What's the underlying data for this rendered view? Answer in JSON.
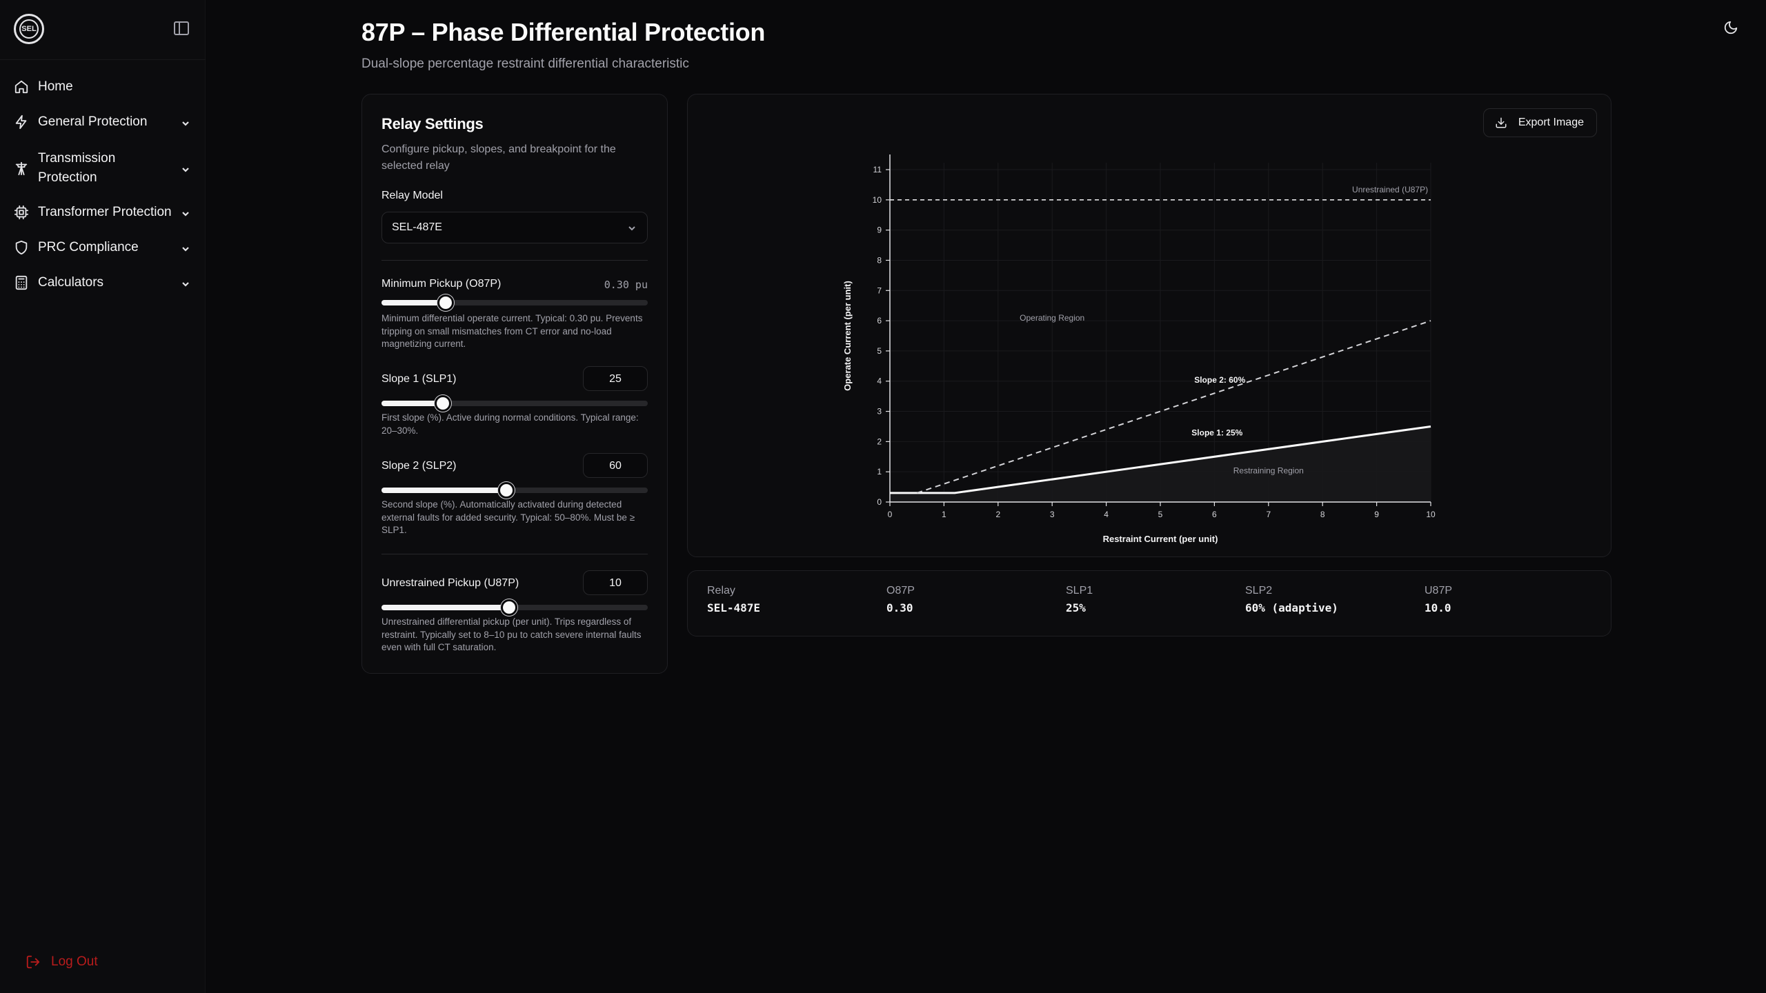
{
  "sidebar": {
    "logo_text": "SEL",
    "items": [
      {
        "label": "Home",
        "icon": "home-icon",
        "has_chevron": false
      },
      {
        "label": "General Protection",
        "icon": "zap-icon",
        "has_chevron": true
      },
      {
        "label": "Transmission\nProtection",
        "icon": "tower-icon",
        "has_chevron": true
      },
      {
        "label": "Transformer Protection",
        "icon": "cpu-icon",
        "has_chevron": true
      },
      {
        "label": "PRC Compliance",
        "icon": "shield-icon",
        "has_chevron": true
      },
      {
        "label": "Calculators",
        "icon": "calculator-icon",
        "has_chevron": true
      }
    ],
    "logout_label": "Log Out"
  },
  "header": {
    "title": "87P – Phase Differential Protection",
    "subtitle": "Dual-slope percentage restraint differential characteristic"
  },
  "settings": {
    "title": "Relay Settings",
    "description": "Configure pickup, slopes, and breakpoint for the selected relay",
    "relay_model_label": "Relay Model",
    "relay_model_value": "SEL-487E",
    "min_pickup": {
      "label": "Minimum Pickup (O87P)",
      "value_text": "0.30 pu",
      "fraction": 0.24,
      "help": "Minimum differential operate current. Typical: 0.30 pu. Prevents tripping on small mismatches from CT error and no-load magnetizing current."
    },
    "slope1": {
      "label": "Slope 1 (SLP1)",
      "value": "25",
      "fraction": 0.23,
      "help": "First slope (%). Active during normal conditions. Typical range: 20–30%."
    },
    "slope2": {
      "label": "Slope 2 (SLP2)",
      "value": "60",
      "fraction": 0.47,
      "help": "Second slope (%). Automatically activated during detected external faults for added security. Typical: 50–80%. Must be ≥ SLP1."
    },
    "unrestrained": {
      "label": "Unrestrained Pickup (U87P)",
      "value": "10",
      "fraction": 0.48,
      "help": "Unrestrained differential pickup (per unit). Trips regardless of restraint. Typically set to 8–10 pu to catch severe internal faults even with full CT saturation."
    }
  },
  "export_label": "Export Image",
  "chart_data": {
    "type": "line",
    "xlabel": "Restraint Current (per unit)",
    "ylabel": "Operate Current (per unit)",
    "xlim": [
      0,
      10
    ],
    "ylim": [
      0,
      11
    ],
    "x_ticks": [
      0,
      1,
      2,
      3,
      4,
      5,
      6,
      7,
      8,
      9,
      10
    ],
    "y_ticks": [
      0,
      1,
      2,
      3,
      4,
      5,
      6,
      7,
      8,
      9,
      10,
      11
    ],
    "grid": true,
    "series": [
      {
        "name": "Slope 1: 25%",
        "style": "solid",
        "points": [
          [
            0,
            0.3
          ],
          [
            1.2,
            0.3
          ],
          [
            10,
            2.5
          ]
        ]
      },
      {
        "name": "Slope 2: 60%",
        "style": "dashed",
        "points": [
          [
            0.5,
            0.3
          ],
          [
            10,
            6.0
          ]
        ]
      },
      {
        "name": "Unrestrained (U87P)",
        "style": "dashed",
        "points": [
          [
            0,
            10
          ],
          [
            10,
            10
          ]
        ]
      }
    ],
    "annotations": [
      {
        "text": "Unrestrained (U87P)",
        "x": 9.95,
        "y": 10.25,
        "anchor": "end"
      },
      {
        "text": "Operating Region",
        "x": 3.0,
        "y": 6.0,
        "anchor": "middle"
      },
      {
        "text": "Slope 2: 60%",
        "x": 6.1,
        "y": 3.95,
        "anchor": "middle"
      },
      {
        "text": "Slope 1: 25%",
        "x": 6.05,
        "y": 2.2,
        "anchor": "middle"
      },
      {
        "text": "Restraining Region",
        "x": 7.0,
        "y": 0.95,
        "anchor": "middle"
      }
    ]
  },
  "summary": [
    {
      "label": "Relay",
      "value": "SEL-487E"
    },
    {
      "label": "O87P",
      "value": "0.30"
    },
    {
      "label": "SLP1",
      "value": "25%"
    },
    {
      "label": "SLP2",
      "value": "60% (adaptive)"
    },
    {
      "label": "U87P",
      "value": "10.0"
    }
  ]
}
